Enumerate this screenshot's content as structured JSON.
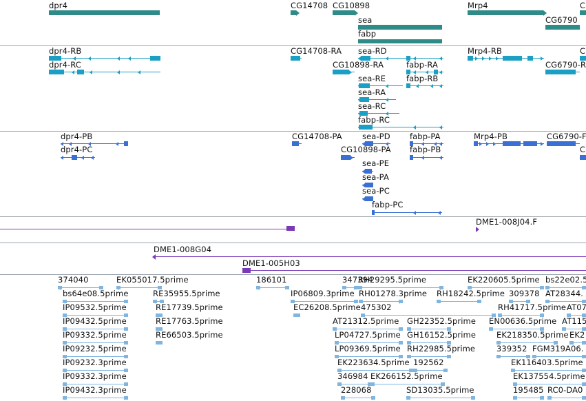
{
  "palette": {
    "gene": "#2e8b88",
    "transcript": "#1b9fc4",
    "protein": "#3a6fd4",
    "cdna": "#7a3ab8",
    "est": "#7fb5df",
    "separator": "#9aa4ae"
  },
  "tracks": [
    {
      "name": "gene-track",
      "features": [
        {
          "label": "dpr4",
          "color": "gene",
          "arrow": "none"
        },
        {
          "label": "CG14708",
          "color": "gene",
          "arrow": "right"
        },
        {
          "label": "CG10898",
          "color": "gene",
          "arrow": "right"
        },
        {
          "label": "sea",
          "color": "gene",
          "arrow": "none"
        },
        {
          "label": "fabp",
          "color": "gene",
          "arrow": "none"
        },
        {
          "label": "Mrp4",
          "color": "gene",
          "arrow": "right"
        },
        {
          "label": "CG6790",
          "color": "gene",
          "arrow": "none"
        },
        {
          "label": "C",
          "color": "gene",
          "arrow": "none"
        }
      ]
    },
    {
      "name": "transcript-track",
      "features": [
        {
          "label": "dpr4-RB",
          "color": "transcript"
        },
        {
          "label": "dpr4-RC",
          "color": "transcript"
        },
        {
          "label": "CG14708-RA",
          "color": "transcript"
        },
        {
          "label": "sea-RD",
          "color": "transcript"
        },
        {
          "label": "CG10898-RA",
          "color": "transcript"
        },
        {
          "label": "fabp-RA",
          "color": "transcript"
        },
        {
          "label": "sea-RE",
          "color": "transcript"
        },
        {
          "label": "fabp-RB",
          "color": "transcript"
        },
        {
          "label": "sea-RA",
          "color": "transcript"
        },
        {
          "label": "sea-RC",
          "color": "transcript"
        },
        {
          "label": "fabp-RC",
          "color": "transcript"
        },
        {
          "label": "Mrp4-RB",
          "color": "transcript"
        },
        {
          "label": "CG6790-R",
          "color": "transcript"
        },
        {
          "label": "C",
          "color": "transcript"
        }
      ]
    },
    {
      "name": "protein-track",
      "features": [
        {
          "label": "dpr4-PB",
          "color": "protein"
        },
        {
          "label": "dpr4-PC",
          "color": "protein"
        },
        {
          "label": "CG14708-PA",
          "color": "protein"
        },
        {
          "label": "sea-PD",
          "color": "protein"
        },
        {
          "label": "fabp-PA",
          "color": "protein"
        },
        {
          "label": "CG10898-PA",
          "color": "protein"
        },
        {
          "label": "fabp-PB",
          "color": "protein"
        },
        {
          "label": "sea-PE",
          "color": "protein"
        },
        {
          "label": "sea-PA",
          "color": "protein"
        },
        {
          "label": "sea-PC",
          "color": "protein"
        },
        {
          "label": "fabp-PC",
          "color": "protein"
        },
        {
          "label": "Mrp4-PB",
          "color": "protein"
        },
        {
          "label": "CG6790-F",
          "color": "protein"
        },
        {
          "label": "C",
          "color": "protein"
        }
      ]
    },
    {
      "name": "cdna-track",
      "features": [
        {
          "label": "",
          "color": "cdna"
        },
        {
          "label": "DME1-008J04.F",
          "color": "cdna"
        }
      ]
    },
    {
      "name": "cdna-track-2",
      "features": [
        {
          "label": "DME1-008G04",
          "color": "cdna"
        },
        {
          "label": "DME1-005H03",
          "color": "cdna"
        }
      ]
    },
    {
      "name": "est-track",
      "features": [
        {
          "label": "374040",
          "color": "est"
        },
        {
          "label": "EK055017.5prime",
          "color": "est"
        },
        {
          "label": "186101",
          "color": "est"
        },
        {
          "label": "347394",
          "color": "est"
        },
        {
          "label": "RH29295.5prime",
          "color": "est"
        },
        {
          "label": "EK220605.5prime",
          "color": "est"
        },
        {
          "label": "bs22e02.5",
          "color": "est"
        },
        {
          "label": "bs64e08.5prime",
          "color": "est"
        },
        {
          "label": "RE35955.5prime",
          "color": "est"
        },
        {
          "label": "IP06809.3prime",
          "color": "est"
        },
        {
          "label": "RH01278.3prime",
          "color": "est"
        },
        {
          "label": "RH18242.5prime",
          "color": "est"
        },
        {
          "label": "309378",
          "color": "est"
        },
        {
          "label": "AT28344.",
          "color": "est"
        },
        {
          "label": "IP09532.5prime",
          "color": "est"
        },
        {
          "label": "RE17739.5prime",
          "color": "est"
        },
        {
          "label": "EC26208.5prime",
          "color": "est"
        },
        {
          "label": "475302",
          "color": "est"
        },
        {
          "label": "RH41717.5prime",
          "color": "est"
        },
        {
          "label": "AT07",
          "color": "est"
        },
        {
          "label": "IP09432.5prime",
          "color": "est"
        },
        {
          "label": "RE17763.5prime",
          "color": "est"
        },
        {
          "label": "AT21312.5prime",
          "color": "est"
        },
        {
          "label": "GH22352.5prime",
          "color": "est"
        },
        {
          "label": "EN00636.5prime",
          "color": "est"
        },
        {
          "label": "AT115",
          "color": "est"
        },
        {
          "label": "IP09332.5prime",
          "color": "est"
        },
        {
          "label": "RE66503.5prime",
          "color": "est"
        },
        {
          "label": "LP04727.5prime",
          "color": "est"
        },
        {
          "label": "GH16152.5prime",
          "color": "est"
        },
        {
          "label": "EK218350.5prime",
          "color": "est"
        },
        {
          "label": "EK2",
          "color": "est"
        },
        {
          "label": "IP09232.5prime",
          "color": "est"
        },
        {
          "label": "LP09369.5prime",
          "color": "est"
        },
        {
          "label": "RH22985.5prime",
          "color": "est"
        },
        {
          "label": "339352",
          "color": "est"
        },
        {
          "label": "FGM319A06.",
          "color": "est"
        },
        {
          "label": "IP09232.3prime",
          "color": "est"
        },
        {
          "label": "EK223634.5prime",
          "color": "est"
        },
        {
          "label": "192562",
          "color": "est"
        },
        {
          "label": "EK116403.5prime",
          "color": "est"
        },
        {
          "label": "IP09332.3prime",
          "color": "est"
        },
        {
          "label": "346984",
          "color": "est"
        },
        {
          "label": "EK266152.5prime",
          "color": "est"
        },
        {
          "label": "EK137554.5prime",
          "color": "est"
        },
        {
          "label": "IP09432.3prime",
          "color": "est"
        },
        {
          "label": "228068",
          "color": "est"
        },
        {
          "label": "SD13035.5prime",
          "color": "est"
        },
        {
          "label": "195485",
          "color": "est"
        },
        {
          "label": "RC0-DA0",
          "color": "est"
        }
      ]
    }
  ]
}
